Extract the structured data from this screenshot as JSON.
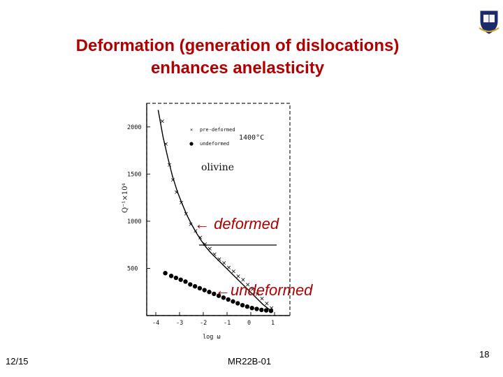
{
  "slide": {
    "title_line1": "Deformation (generation of dislocations)",
    "title_line2": "enhances anelasticity",
    "footer_date": "12/15",
    "footer_center": "MR22B-01",
    "page_number": "18",
    "title_color": "#b00000"
  },
  "chart_data": {
    "type": "scatter",
    "xlim": [
      -4,
      1
    ],
    "ylim": [
      0,
      2250
    ],
    "x_ticks": [
      "-4",
      "-3",
      "-2",
      "-1",
      "0",
      "1"
    ],
    "y_ticks": [
      "500",
      "1000",
      "1500",
      "2000"
    ],
    "xlabel": "log ω",
    "ylabel": "Q⁻¹×10⁴",
    "legend": [
      {
        "marker": "x",
        "label": "pre-deformed"
      },
      {
        "marker": "dot",
        "label": "undeformed"
      }
    ],
    "temperature_label": "1400°C",
    "material_label": "olivine",
    "annotations": {
      "deformed": "← deformed",
      "undeformed": "←undeformed"
    },
    "annotation_color": "#b00000",
    "series": [
      {
        "name": "pre-deformed",
        "marker": "x",
        "x": [
          -3.75,
          -3.6,
          -3.45,
          -3.3,
          -3.15,
          -2.95,
          -2.75,
          -2.55,
          -2.35,
          -2.15,
          -1.95,
          -1.75,
          -1.55,
          -1.35,
          -1.15,
          -0.95,
          -0.75,
          -0.55,
          -0.35,
          -0.15,
          0.05,
          0.25,
          0.45,
          0.65,
          0.85
        ],
        "y": [
          2060,
          1820,
          1600,
          1440,
          1310,
          1200,
          1080,
          970,
          900,
          830,
          760,
          710,
          650,
          600,
          560,
          510,
          470,
          420,
          380,
          330,
          280,
          230,
          180,
          130,
          80
        ]
      },
      {
        "name": "undeformed",
        "marker": "dot",
        "x": [
          -3.6,
          -3.35,
          -3.15,
          -2.95,
          -2.75,
          -2.55,
          -2.35,
          -2.15,
          -1.95,
          -1.75,
          -1.55,
          -1.35,
          -1.15,
          -0.95,
          -0.75,
          -0.55,
          -0.35,
          -0.15,
          0.05,
          0.25,
          0.45,
          0.65,
          0.85
        ],
        "y": [
          450,
          420,
          400,
          380,
          360,
          330,
          310,
          290,
          270,
          250,
          230,
          210,
          190,
          170,
          150,
          130,
          110,
          95,
          80,
          70,
          60,
          55,
          50
        ]
      },
      {
        "name": "fit",
        "marker": "line",
        "x": [
          -3.9,
          -3.7,
          -3.5,
          -3.3,
          -3.1,
          -2.9,
          -2.7,
          -2.5,
          -2.3,
          -2.1,
          -1.9,
          -1.7,
          -1.5,
          -1.3,
          -1.1,
          -0.9,
          -0.7,
          -0.5,
          -0.3,
          -0.1,
          0.1,
          0.3,
          0.5,
          0.7,
          0.9
        ],
        "y": [
          2180,
          1900,
          1680,
          1480,
          1320,
          1190,
          1070,
          970,
          880,
          800,
          730,
          670,
          620,
          570,
          520,
          470,
          420,
          370,
          320,
          270,
          220,
          170,
          120,
          80,
          40
        ]
      }
    ]
  }
}
